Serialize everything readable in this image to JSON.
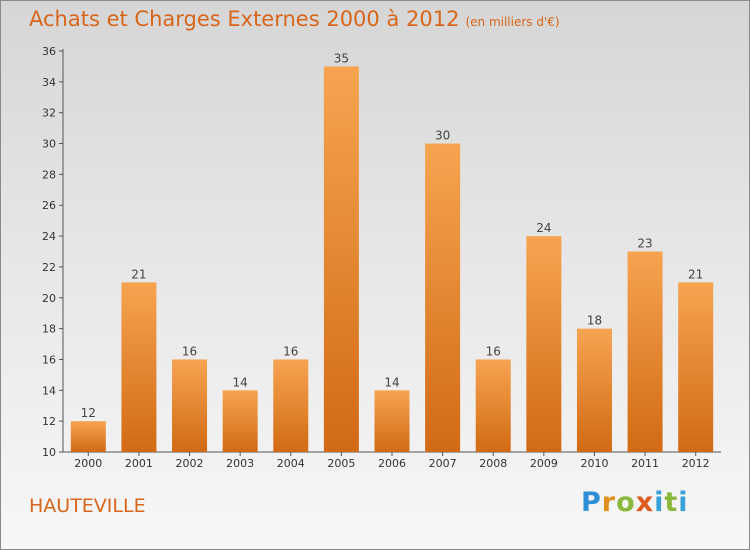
{
  "title": "Achats et Charges Externes 2000 à 2012",
  "subtitle": "(en milliers d'€)",
  "city": "HAUTEVILLE",
  "logo_text": "Proxiti",
  "colors": {
    "bar_top": "#f6a450",
    "bar_bottom": "#d26a14",
    "text": "#d8661a"
  },
  "chart_data": {
    "type": "bar",
    "categories": [
      "2000",
      "2001",
      "2002",
      "2003",
      "2004",
      "2005",
      "2006",
      "2007",
      "2008",
      "2009",
      "2010",
      "2011",
      "2012"
    ],
    "values": [
      12,
      21,
      16,
      14,
      16,
      35,
      14,
      30,
      16,
      24,
      18,
      23,
      21
    ],
    "ylim": [
      10,
      36
    ],
    "yticks": [
      10,
      12,
      14,
      16,
      18,
      20,
      22,
      24,
      26,
      28,
      30,
      32,
      34,
      36
    ],
    "grid": false,
    "legend": "none",
    "title": "Achats et Charges Externes 2000 à 2012",
    "xlabel": "",
    "ylabel": ""
  }
}
